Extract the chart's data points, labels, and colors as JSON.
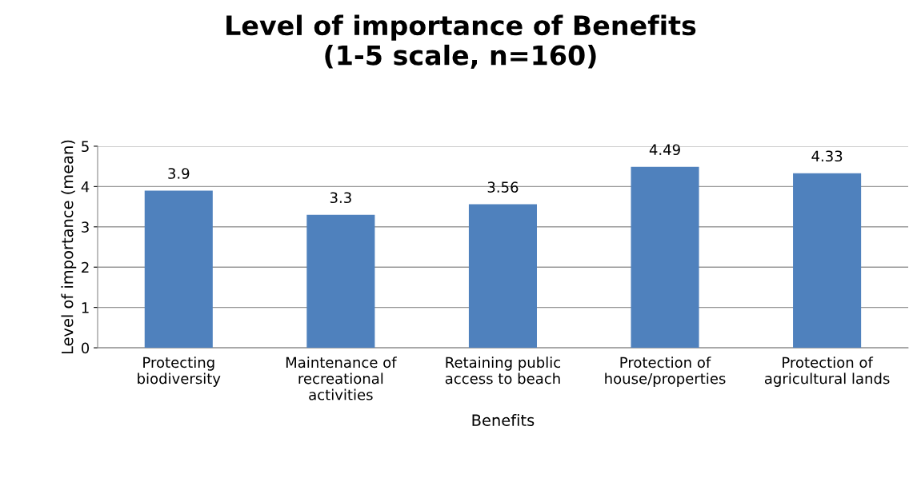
{
  "chart_data": {
    "type": "bar",
    "title": "Level of importance of Benefits\n(1-5 scale, n=160)",
    "xlabel": "Benefits",
    "ylabel": "Level of importance (mean)",
    "categories": [
      "Protecting\nbiodiversity",
      "Maintenance of\nrecreational\nactivities",
      "Retaining public\naccess to beach",
      "Protection of\nhouse/properties",
      "Protection of\nagricultural lands"
    ],
    "values": [
      3.9,
      3.3,
      3.56,
      4.49,
      4.33
    ],
    "color": "#4f81bd",
    "ylim": [
      0,
      5
    ],
    "yticks": [
      0,
      1,
      2,
      3,
      4,
      5
    ],
    "grid": "y",
    "data_labels": true
  }
}
